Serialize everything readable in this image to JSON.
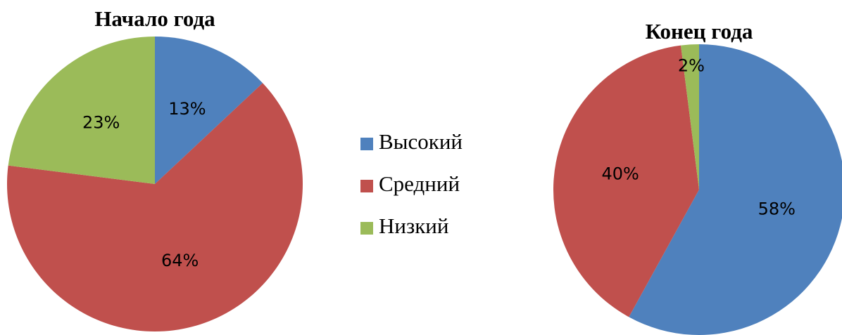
{
  "chart_data": [
    {
      "type": "pie",
      "title": "Начало года",
      "categories": [
        "Высокий",
        "Средний",
        "Низкий"
      ],
      "values": [
        13,
        64,
        23
      ],
      "value_labels": [
        "13%",
        "64%",
        "23%"
      ],
      "colors": [
        "#4f81bd",
        "#c0504d",
        "#9bbb59"
      ],
      "legend": "right"
    },
    {
      "type": "pie",
      "title": "Конец года",
      "categories": [
        "Высокий",
        "Средний",
        "Низкий"
      ],
      "values": [
        58,
        40,
        2
      ],
      "value_labels": [
        "58%",
        "40%",
        "2%"
      ],
      "colors": [
        "#4f81bd",
        "#c0504d",
        "#9bbb59"
      ]
    }
  ]
}
